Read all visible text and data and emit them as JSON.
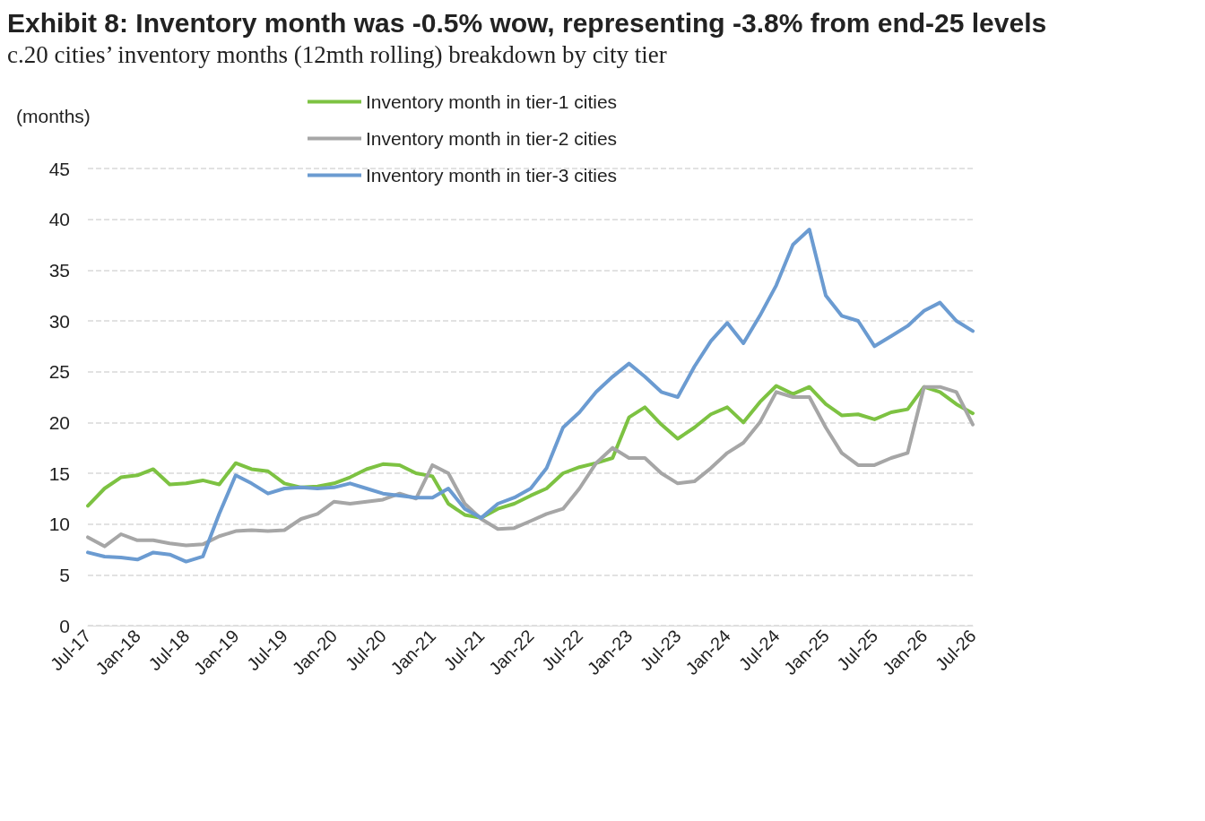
{
  "chart_data": {
    "type": "line",
    "title": "Exhibit 8: Inventory month was -0.5% wow, representing -3.8% from end-25 levels",
    "subtitle": "c.20 cities’ inventory months (12mth rolling) breakdown by city tier",
    "ylabel": "(months)",
    "x": [
      "2017-07",
      "2017-09",
      "2017-11",
      "2018-01",
      "2018-03",
      "2018-05",
      "2018-07",
      "2018-09",
      "2018-11",
      "2019-01",
      "2019-03",
      "2019-05",
      "2019-07",
      "2019-09",
      "2019-11",
      "2020-01",
      "2020-03",
      "2020-05",
      "2020-07",
      "2020-09",
      "2020-11",
      "2021-01",
      "2021-03",
      "2021-05",
      "2021-07",
      "2021-09",
      "2021-11",
      "2022-01",
      "2022-03",
      "2022-05",
      "2022-07",
      "2022-09",
      "2022-11",
      "2023-01",
      "2023-03",
      "2023-05",
      "2023-07",
      "2023-09",
      "2023-11",
      "2024-01",
      "2024-03",
      "2024-05",
      "2024-07",
      "2024-09",
      "2024-11",
      "2025-01",
      "2025-03",
      "2025-05",
      "2025-07",
      "2025-09",
      "2025-11",
      "2026-01",
      "2026-03",
      "2026-05",
      "2026-07"
    ],
    "series": [
      {
        "name": "Inventory month in tier-1 cities",
        "color": "#7dc242",
        "values": [
          11.8,
          13.5,
          14.6,
          14.8,
          15.4,
          13.9,
          14.0,
          14.3,
          13.9,
          16.0,
          15.4,
          15.2,
          14.0,
          13.6,
          13.7,
          14.0,
          14.6,
          15.4,
          15.9,
          15.8,
          15.0,
          14.7,
          12.0,
          10.9,
          10.6,
          11.5,
          12.0,
          12.8,
          13.5,
          15.0,
          15.6,
          16.0,
          16.5,
          20.5,
          21.5,
          19.8,
          18.4,
          19.5,
          20.8,
          21.5,
          20.0,
          22.0,
          23.6,
          22.8,
          23.5,
          21.8,
          20.7,
          20.8,
          20.3,
          21.0,
          21.3,
          23.5,
          23.0,
          21.8,
          20.9
        ]
      },
      {
        "name": "Inventory month in tier-2 cities",
        "color": "#a6a6a6",
        "values": [
          8.7,
          7.8,
          9.0,
          8.4,
          8.4,
          8.1,
          7.9,
          8.0,
          8.8,
          9.3,
          9.4,
          9.3,
          9.4,
          10.5,
          11.0,
          12.2,
          12.0,
          12.2,
          12.4,
          13.0,
          12.5,
          15.8,
          15.0,
          12.0,
          10.5,
          9.5,
          9.6,
          10.3,
          11.0,
          11.5,
          13.5,
          16.0,
          17.5,
          16.5,
          16.5,
          15.0,
          14.0,
          14.2,
          15.5,
          17.0,
          18.0,
          20.0,
          23.0,
          22.5,
          22.5,
          19.5,
          17.0,
          15.8,
          15.8,
          16.5,
          17.0,
          23.5,
          23.5,
          23.0,
          19.8
        ]
      },
      {
        "name": "Inventory month in tier-3 cities",
        "color": "#6b9bd1",
        "values": [
          7.2,
          6.8,
          6.7,
          6.5,
          7.2,
          7.0,
          6.3,
          6.8,
          11.0,
          14.8,
          14.0,
          13.0,
          13.5,
          13.6,
          13.5,
          13.6,
          14.0,
          13.5,
          13.0,
          12.8,
          12.6,
          12.6,
          13.5,
          11.5,
          10.6,
          12.0,
          12.6,
          13.5,
          15.5,
          19.5,
          21.0,
          23.0,
          24.5,
          25.8,
          24.5,
          23.0,
          22.5,
          25.5,
          28.0,
          29.8,
          27.8,
          30.5,
          33.5,
          37.5,
          39.0,
          32.5,
          30.5,
          30.0,
          27.5,
          28.5,
          29.5,
          31.0,
          31.8,
          30.0,
          29.0
        ]
      }
    ],
    "xlim": [
      "2017-07",
      "2026-07"
    ],
    "xticks": [
      {
        "value": "2017-07",
        "label": "Jul-17"
      },
      {
        "value": "2018-01",
        "label": "Jan-18"
      },
      {
        "value": "2018-07",
        "label": "Jul-18"
      },
      {
        "value": "2019-01",
        "label": "Jan-19"
      },
      {
        "value": "2019-07",
        "label": "Jul-19"
      },
      {
        "value": "2020-01",
        "label": "Jan-20"
      },
      {
        "value": "2020-07",
        "label": "Jul-20"
      },
      {
        "value": "2021-01",
        "label": "Jan-21"
      },
      {
        "value": "2021-07",
        "label": "Jul-21"
      },
      {
        "value": "2022-01",
        "label": "Jan-22"
      },
      {
        "value": "2022-07",
        "label": "Jul-22"
      },
      {
        "value": "2023-01",
        "label": "Jan-23"
      },
      {
        "value": "2023-07",
        "label": "Jul-23"
      },
      {
        "value": "2024-01",
        "label": "Jan-24"
      },
      {
        "value": "2024-07",
        "label": "Jul-24"
      },
      {
        "value": "2025-01",
        "label": "Jan-25"
      },
      {
        "value": "2025-07",
        "label": "Jul-25"
      },
      {
        "value": "2026-01",
        "label": "Jan-26"
      },
      {
        "value": "2026-07",
        "label": "Jul-26"
      }
    ],
    "ylim": [
      0,
      45
    ],
    "yticks": [
      0,
      5,
      10,
      15,
      20,
      25,
      30,
      35,
      40,
      45
    ],
    "grid": "y",
    "legend": "top",
    "marker": "none",
    "line_style": "solid"
  }
}
